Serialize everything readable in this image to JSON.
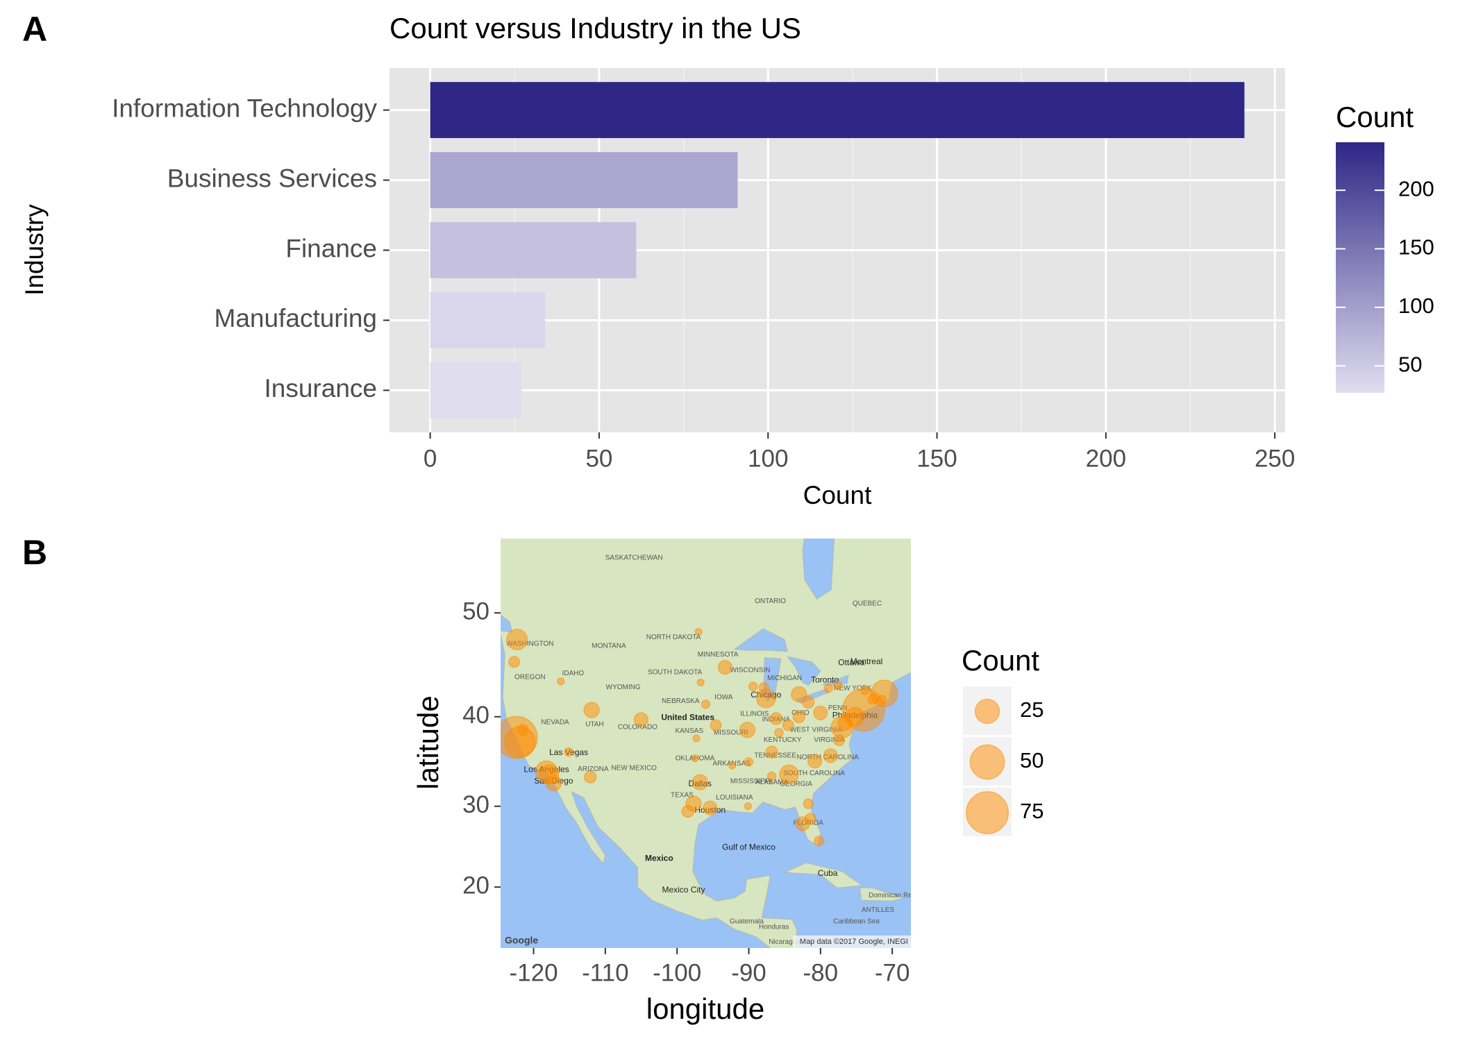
{
  "chart_data": [
    {
      "panel": "A",
      "type": "bar",
      "orientation": "horizontal",
      "title": "Count versus Industry in the US",
      "x_label": "Count",
      "y_label": "Industry",
      "categories": [
        "Information Technology",
        "Business Services",
        "Finance",
        "Manufacturing",
        "Insurance"
      ],
      "values": [
        241,
        91,
        61,
        34,
        27
      ],
      "xlim": [
        -12.05,
        253.05
      ],
      "xticks": [
        0,
        50,
        100,
        150,
        200,
        250
      ],
      "xminorticks": [
        25,
        75,
        125,
        175,
        225
      ],
      "grid": true,
      "legend_position": "right",
      "legend": {
        "title": "Count",
        "color_low": "#e0ddef",
        "color_high": "#2e2786",
        "limits": [
          27,
          241
        ],
        "ticks": [
          50,
          100,
          150,
          200
        ]
      }
    },
    {
      "panel": "B",
      "type": "scatter",
      "x_label": "longitude",
      "y_label": "latitude",
      "projection": "mercator",
      "xlim": [
        -124.6,
        -67.4
      ],
      "ylim": [
        12,
        56.1
      ],
      "xticks": [
        -120,
        -110,
        -100,
        -90,
        -80,
        -70
      ],
      "yticks": [
        20,
        30,
        40,
        50
      ],
      "color": "#ff8c00",
      "opacity": 0.5,
      "legend_position": "right",
      "x": [
        -122.3,
        -122.7,
        -122.4,
        -121.9,
        -121.5,
        -118.2,
        -117.8,
        -117.2,
        -115.1,
        -112.1,
        -111.9,
        -116.2,
        -105.0,
        -96.8,
        -97.7,
        -95.4,
        -98.5,
        -97.5,
        -94.6,
        -96.0,
        -93.3,
        -87.6,
        -87.9,
        -89.4,
        -90.2,
        -86.2,
        -83.0,
        -83.0,
        -84.5,
        -81.7,
        -80.0,
        -86.8,
        -84.4,
        -80.8,
        -78.6,
        -77.4,
        -77.0,
        -76.6,
        -75.2,
        -74.0,
        -71.1,
        -72.7,
        -71.4,
        -81.7,
        -82.5,
        -81.4,
        -80.2,
        -90.1,
        -90.0,
        -86.8,
        -85.8,
        -73.8,
        -78.9,
        -77.6,
        -97.0,
        -96.7,
        -92.3,
        -97.3
      ],
      "y": [
        47.6,
        45.5,
        37.8,
        37.3,
        38.6,
        34.0,
        33.7,
        32.7,
        36.2,
        33.4,
        40.7,
        43.6,
        39.7,
        32.8,
        30.3,
        29.8,
        29.4,
        35.5,
        39.1,
        41.3,
        44.98,
        41.9,
        43.0,
        43.1,
        38.6,
        39.8,
        42.3,
        40.0,
        39.1,
        41.5,
        40.4,
        36.2,
        33.7,
        35.2,
        35.8,
        37.5,
        38.9,
        39.3,
        40.0,
        40.7,
        42.4,
        41.8,
        41.8,
        30.3,
        27.9,
        28.5,
        25.8,
        30.0,
        35.1,
        33.5,
        38.3,
        42.7,
        42.9,
        43.2,
        48.3,
        43.5,
        34.7,
        37.7
      ],
      "size": [
        18,
        5,
        75,
        40,
        5,
        20,
        15,
        10,
        3,
        6,
        10,
        2,
        8,
        10,
        10,
        8,
        6,
        2,
        5,
        3,
        8,
        15,
        4,
        3,
        10,
        6,
        10,
        6,
        5,
        6,
        8,
        6,
        15,
        8,
        8,
        5,
        20,
        8,
        15,
        75,
        30,
        4,
        3,
        4,
        8,
        5,
        4,
        2,
        3,
        3,
        3,
        3,
        3,
        3,
        2,
        2,
        2,
        2
      ],
      "size_legend": {
        "title": "Count",
        "breaks": [
          25,
          50,
          75
        ]
      },
      "basemap_labels": [
        "SASKATCHEWAN",
        "ONTARIO",
        "QUEBEC",
        "MONTANA",
        "NORTH DAKOTA",
        "SOUTH DAKOTA",
        "MINNESOTA",
        "WISCONSIN",
        "MICHIGAN",
        "IDAHO",
        "OREGON",
        "WASHINGTON",
        "WYOMING",
        "NEBRASKA",
        "IOWA",
        "ILLINOIS",
        "INDIANA",
        "OHIO",
        "PENN",
        "NEW YORK",
        "NEVADA",
        "UTAH",
        "COLORADO",
        "KANSAS",
        "MISSOURI",
        "KENTUCKY",
        "WEST VIRGINIA",
        "VIRGINIA",
        "ARIZONA",
        "NEW MEXICO",
        "OKLAHOMA",
        "ARKANSAS",
        "TENNESSEE",
        "NORTH CAROLINA",
        "SOUTH CAROLINA",
        "MISSISSIPPI",
        "ALABAMA",
        "GEORGIA",
        "TEXAS",
        "LOUISIANA",
        "FLORIDA",
        "United States",
        "Mexico",
        "Gulf of Mexico",
        "Cuba",
        "Caribbean Sea",
        "Guatemala",
        "Honduras",
        "Nicaragua",
        "ANTILLES",
        "Dominican Republic",
        "Ottawa",
        "Montreal",
        "Toronto",
        "Chicago",
        "Dallas",
        "Houston",
        "Las Vegas",
        "Los Angeles",
        "San Diego",
        "Philadelphia",
        "Mexico City"
      ],
      "basemap_credits": [
        "Google",
        "Map data ©2017 Google, INEGI"
      ]
    }
  ]
}
